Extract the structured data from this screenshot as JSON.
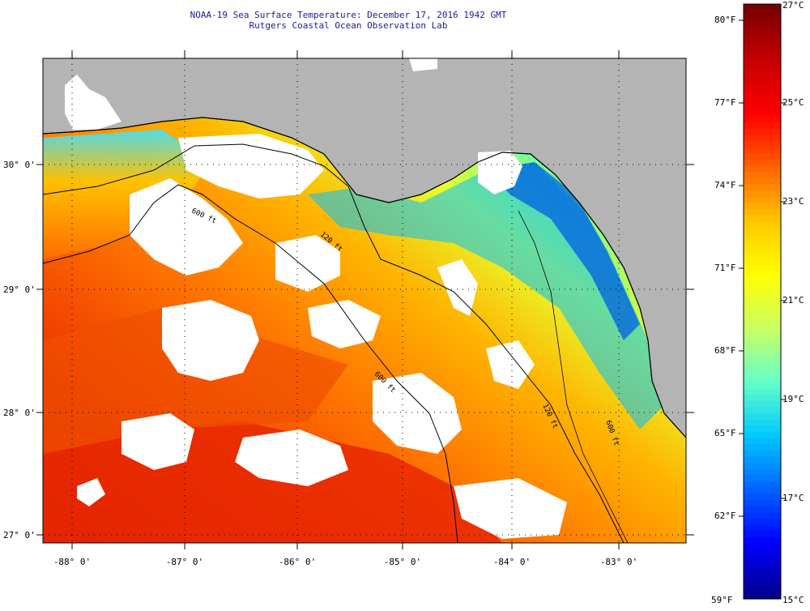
{
  "title": {
    "line1": "NOAA-19 Sea Surface Temperature:  December 17, 2016 1942 GMT",
    "line2": "Rutgers Coastal Ocean Observation Lab"
  },
  "map": {
    "lat_labels": [
      "30° 0'",
      "29° 0'",
      "28° 0'",
      "27° 0'"
    ],
    "lon_labels": [
      "-88° 0'",
      "-87° 0'",
      "-86° 0'",
      "-85° 0'",
      "-84° 0'",
      "-83° 0'"
    ],
    "contour_labels": [
      "600 ft",
      "120 ft",
      "600 ft",
      "120 ft",
      "600 ft"
    ]
  },
  "colorbar": {
    "fahrenheit_labels": [
      "80°F",
      "77°F",
      "74°F",
      "71°F",
      "68°F",
      "65°F",
      "62°F",
      "59°F"
    ],
    "celsius_labels": [
      "27°C",
      "25°C",
      "23°C",
      "21°C",
      "19°C",
      "17°C",
      "15°C"
    ],
    "colors": [
      "#00008c",
      "#0000ff",
      "#0064ff",
      "#00c8ff",
      "#64ffc8",
      "#c8ff64",
      "#ffff00",
      "#ffc800",
      "#ff6400",
      "#ff0000",
      "#c80000",
      "#780000"
    ]
  },
  "colors": {
    "land": "#b4b4b4",
    "cloud": "#ffffff",
    "title": "#1a1aa0"
  }
}
